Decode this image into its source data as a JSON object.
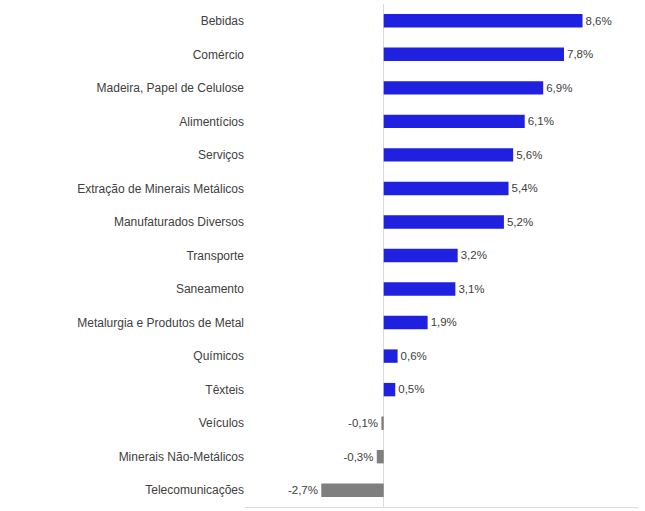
{
  "chart_data": {
    "type": "bar",
    "orientation": "horizontal",
    "categories": [
      "Bebidas",
      "Comércio",
      "Madeira, Papel de Celulose",
      "Alimentícios",
      "Serviços",
      "Extração de Minerais Metálicos",
      "Manufaturados Diversos",
      "Transporte",
      "Saneamento",
      "Metalurgia e Produtos de Metal",
      "Químicos",
      "Têxteis",
      "Veículos",
      "Minerais Não-Metálicos",
      "Telecomunicações"
    ],
    "values": [
      8.6,
      7.8,
      6.9,
      6.1,
      5.6,
      5.4,
      5.2,
      3.2,
      3.1,
      1.9,
      0.6,
      0.5,
      -0.1,
      -0.3,
      -2.7
    ],
    "value_labels": [
      "8,6%",
      "7,8%",
      "6,9%",
      "6,1%",
      "5,6%",
      "5,4%",
      "5,2%",
      "3,2%",
      "3,1%",
      "1,9%",
      "0,6%",
      "0,5%",
      "-0,1%",
      "-0,3%",
      "-2,7%"
    ],
    "colors": [
      "#2020e0",
      "#2020e0",
      "#2020e0",
      "#2020e0",
      "#2020e0",
      "#2020e0",
      "#2020e0",
      "#2020e0",
      "#2020e0",
      "#2020e0",
      "#2020e0",
      "#2020e0",
      "#7f7f7f",
      "#7f7f7f",
      "#7f7f7f"
    ],
    "xlim": [
      -6,
      11
    ],
    "xticks": [],
    "grid": false,
    "data_labels": true,
    "tick_labels": "y"
  }
}
